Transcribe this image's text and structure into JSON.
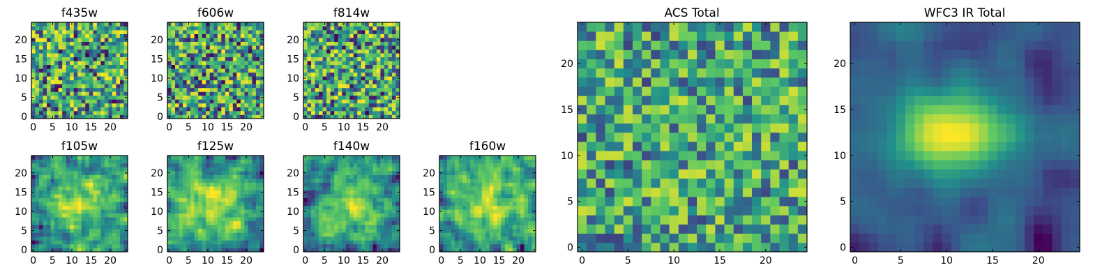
{
  "figure": {
    "colormap": "viridis",
    "colormap_stops": [
      "#440154",
      "#3b528b",
      "#21918c",
      "#5ec962",
      "#fde725"
    ]
  },
  "chart_data": [
    {
      "type": "heatmap",
      "title": "f435w",
      "grid_size": [
        25,
        25
      ],
      "xlim": [
        -0.5,
        24.5
      ],
      "ylim": [
        -0.5,
        24.5
      ],
      "xticks": [
        0,
        5,
        10,
        15,
        20
      ],
      "yticks": [
        0,
        5,
        10,
        15,
        20
      ],
      "seed": 11,
      "pattern": "noise",
      "contrast": 1.0
    },
    {
      "type": "heatmap",
      "title": "f606w",
      "grid_size": [
        25,
        25
      ],
      "xlim": [
        -0.5,
        24.5
      ],
      "ylim": [
        -0.5,
        24.5
      ],
      "xticks": [
        0,
        5,
        10,
        15,
        20
      ],
      "yticks": [
        0,
        5,
        10,
        15,
        20
      ],
      "seed": 23,
      "pattern": "noise",
      "contrast": 1.0
    },
    {
      "type": "heatmap",
      "title": "f814w",
      "grid_size": [
        25,
        25
      ],
      "xlim": [
        -0.5,
        24.5
      ],
      "ylim": [
        -0.5,
        24.5
      ],
      "xticks": [
        0,
        5,
        10,
        15,
        20
      ],
      "yticks": [
        0,
        5,
        10,
        15,
        20
      ],
      "seed": 37,
      "pattern": "noise",
      "contrast": 1.0
    },
    {
      "type": "heatmap",
      "title": "f105w",
      "grid_size": [
        25,
        25
      ],
      "xlim": [
        -0.5,
        24.5
      ],
      "ylim": [
        -0.5,
        24.5
      ],
      "xticks": [
        0,
        5,
        10,
        15,
        20
      ],
      "yticks": [
        0,
        5,
        10,
        15,
        20
      ],
      "seed": 41,
      "pattern": "smooth",
      "contrast": 1.1
    },
    {
      "type": "heatmap",
      "title": "f125w",
      "grid_size": [
        25,
        25
      ],
      "xlim": [
        -0.5,
        24.5
      ],
      "ylim": [
        -0.5,
        24.5
      ],
      "xticks": [
        0,
        5,
        10,
        15,
        20
      ],
      "yticks": [
        0,
        5,
        10,
        15,
        20
      ],
      "seed": 53,
      "pattern": "smooth",
      "contrast": 1.1
    },
    {
      "type": "heatmap",
      "title": "f140w",
      "grid_size": [
        25,
        25
      ],
      "xlim": [
        -0.5,
        24.5
      ],
      "ylim": [
        -0.5,
        24.5
      ],
      "xticks": [
        0,
        5,
        10,
        15,
        20
      ],
      "yticks": [
        0,
        5,
        10,
        15,
        20
      ],
      "seed": 67,
      "pattern": "smooth",
      "contrast": 1.1
    },
    {
      "type": "heatmap",
      "title": "f160w",
      "grid_size": [
        25,
        25
      ],
      "xlim": [
        -0.5,
        24.5
      ],
      "ylim": [
        -0.5,
        24.5
      ],
      "xticks": [
        0,
        5,
        10,
        15,
        20
      ],
      "yticks": [
        0,
        5,
        10,
        15,
        20
      ],
      "seed": 79,
      "pattern": "smooth",
      "contrast": 1.1
    },
    {
      "type": "heatmap",
      "title": "ACS Total",
      "grid_size": [
        25,
        25
      ],
      "xlim": [
        -0.5,
        24.5
      ],
      "ylim": [
        -0.5,
        24.5
      ],
      "xticks": [
        0,
        5,
        10,
        15,
        20
      ],
      "yticks": [
        0,
        5,
        10,
        15,
        20
      ],
      "seed": 97,
      "pattern": "noise",
      "contrast": 0.8
    },
    {
      "type": "heatmap",
      "title": "WFC3 IR Total",
      "grid_size": [
        25,
        25
      ],
      "xlim": [
        -0.5,
        24.5
      ],
      "ylim": [
        -0.5,
        24.5
      ],
      "xticks": [
        0,
        5,
        10,
        15,
        20
      ],
      "yticks": [
        0,
        5,
        10,
        15,
        20
      ],
      "seed": 131,
      "pattern": "blob",
      "contrast": 1.0
    }
  ]
}
